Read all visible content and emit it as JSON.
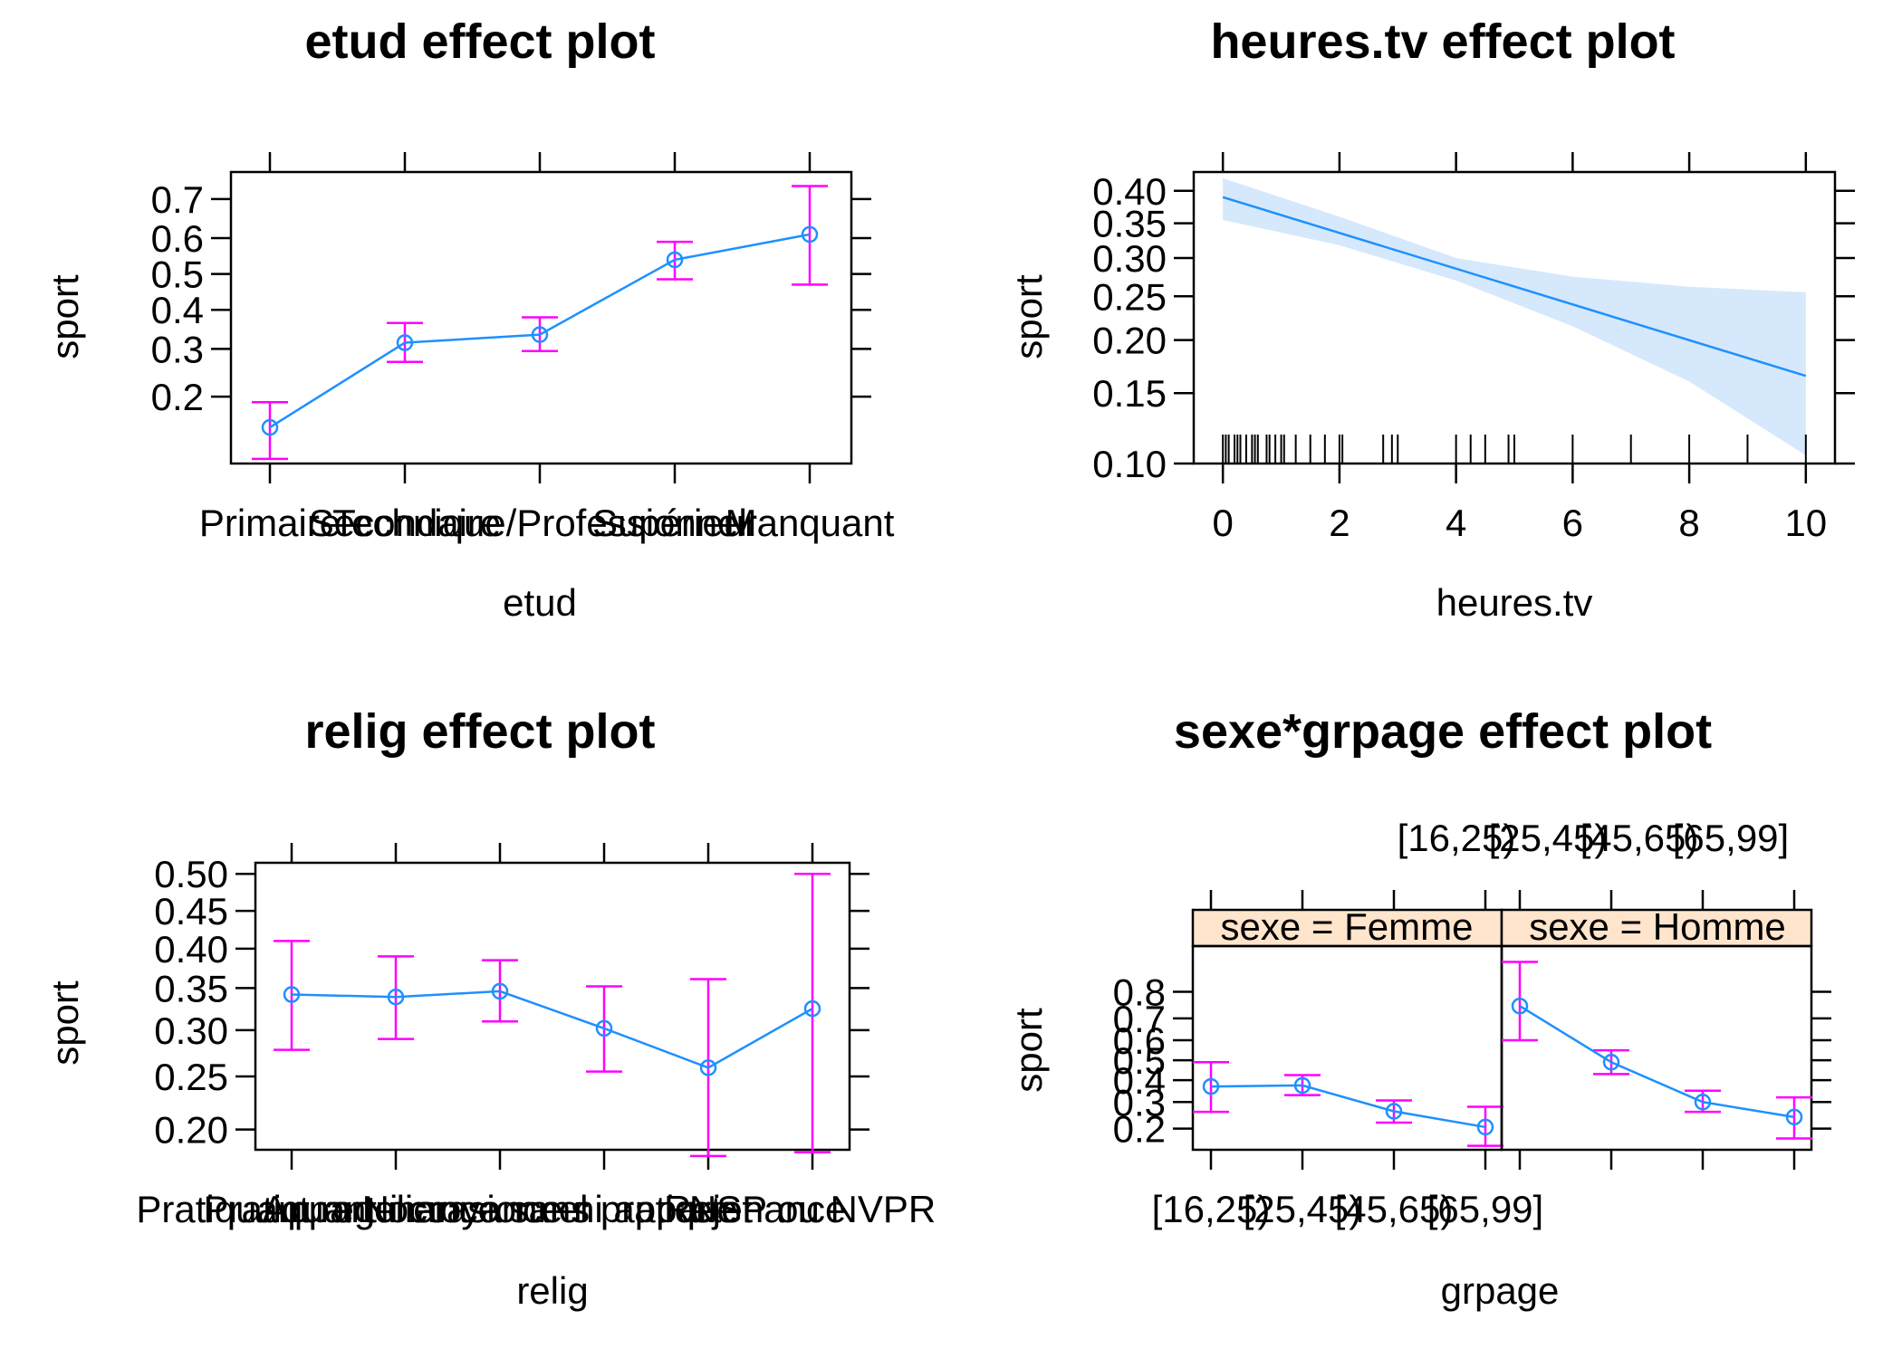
{
  "colors": {
    "line": "#1E90FF",
    "point": "#1E90FF",
    "errorbar": "#FF00FF",
    "band": "#D6E8FB",
    "strip": "#FFE5CC",
    "rug": "#000000"
  },
  "chart_data": [
    {
      "id": "etud",
      "type": "line",
      "title": "etud effect plot",
      "xlabel": "etud",
      "ylabel": "sport",
      "categories": [
        "Primaire",
        "Secondaire",
        "Technique/Professionnel",
        "Supérieur",
        "Manquant"
      ],
      "values": [
        0.15,
        0.315,
        0.335,
        0.54,
        0.61
      ],
      "lower": [
        0.11,
        0.27,
        0.295,
        0.485,
        0.47
      ],
      "upper": [
        0.19,
        0.365,
        0.38,
        0.59,
        0.73
      ],
      "y_scale": "logit",
      "yticks": [
        0.2,
        0.3,
        0.4,
        0.5,
        0.6,
        0.7
      ],
      "ylim": [
        0.105,
        0.76
      ]
    },
    {
      "id": "heures_tv",
      "type": "line",
      "title": "heures.tv effect plot",
      "xlabel": "heures.tv",
      "ylabel": "sport",
      "x": [
        0,
        10
      ],
      "y": [
        0.39,
        0.165
      ],
      "band_x": [
        0,
        2,
        4,
        6,
        8,
        10
      ],
      "band_lower": [
        0.355,
        0.318,
        0.27,
        0.215,
        0.16,
        0.105
      ],
      "band_upper": [
        0.42,
        0.36,
        0.3,
        0.275,
        0.262,
        0.255
      ],
      "y_scale": "logit",
      "xticks": [
        0,
        2,
        4,
        6,
        8,
        10
      ],
      "yticks": [
        0.1,
        0.15,
        0.2,
        0.25,
        0.3,
        0.35,
        0.4
      ],
      "xlim": [
        -0.5,
        10.5
      ],
      "ylim": [
        0.1,
        0.43
      ],
      "rug": [
        0,
        0.05,
        0.1,
        0.2,
        0.25,
        0.3,
        0.4,
        0.5,
        0.55,
        0.6,
        0.75,
        0.8,
        0.9,
        1,
        1.05,
        1.25,
        1.5,
        1.75,
        2,
        2.05,
        2.75,
        2.9,
        3,
        4,
        4.25,
        4.5,
        4.9,
        5,
        6,
        7,
        8,
        9,
        10
      ]
    },
    {
      "id": "relig",
      "type": "line",
      "title": "relig effect plot",
      "xlabel": "relig",
      "ylabel": "sport",
      "categories": [
        "Pratiquant regulier",
        "Pratiquant occasionnel",
        "Appartenance sans pratique",
        "Ni croyance ni appartenance",
        "Rejet",
        "NSP ou NVPR"
      ],
      "values": [
        0.342,
        0.339,
        0.346,
        0.302,
        0.259,
        0.325
      ],
      "lower": [
        0.278,
        0.29,
        0.31,
        0.255,
        0.178,
        0.181
      ],
      "upper": [
        0.41,
        0.39,
        0.385,
        0.352,
        0.361,
        0.5
      ],
      "y_scale": "logit",
      "yticks": [
        0.2,
        0.25,
        0.3,
        0.35,
        0.4,
        0.45,
        0.5
      ],
      "ylim": [
        0.183,
        0.515
      ]
    },
    {
      "id": "sexe_grpage",
      "type": "line",
      "title": "sexe*grpage effect plot",
      "xlabel": "grpage",
      "ylabel": "sport",
      "categories": [
        "[16,25)",
        "[25,45)",
        "[45,65)",
        "[65,99]"
      ],
      "panels": [
        {
          "strip": "sexe = Femme",
          "values": [
            0.37,
            0.375,
            0.262,
            0.205
          ],
          "lower": [
            0.26,
            0.33,
            0.22,
            0.15
          ],
          "upper": [
            0.49,
            0.425,
            0.307,
            0.28
          ]
        },
        {
          "strip": "sexe = Homme",
          "values": [
            0.75,
            0.49,
            0.3,
            0.24
          ],
          "lower": [
            0.6,
            0.43,
            0.26,
            0.17
          ],
          "upper": [
            0.88,
            0.55,
            0.35,
            0.32
          ]
        }
      ],
      "y_scale": "logit",
      "yticks": [
        0.2,
        0.3,
        0.4,
        0.5,
        0.6,
        0.7,
        0.8
      ],
      "ylim": [
        0.14,
        0.91
      ]
    }
  ]
}
